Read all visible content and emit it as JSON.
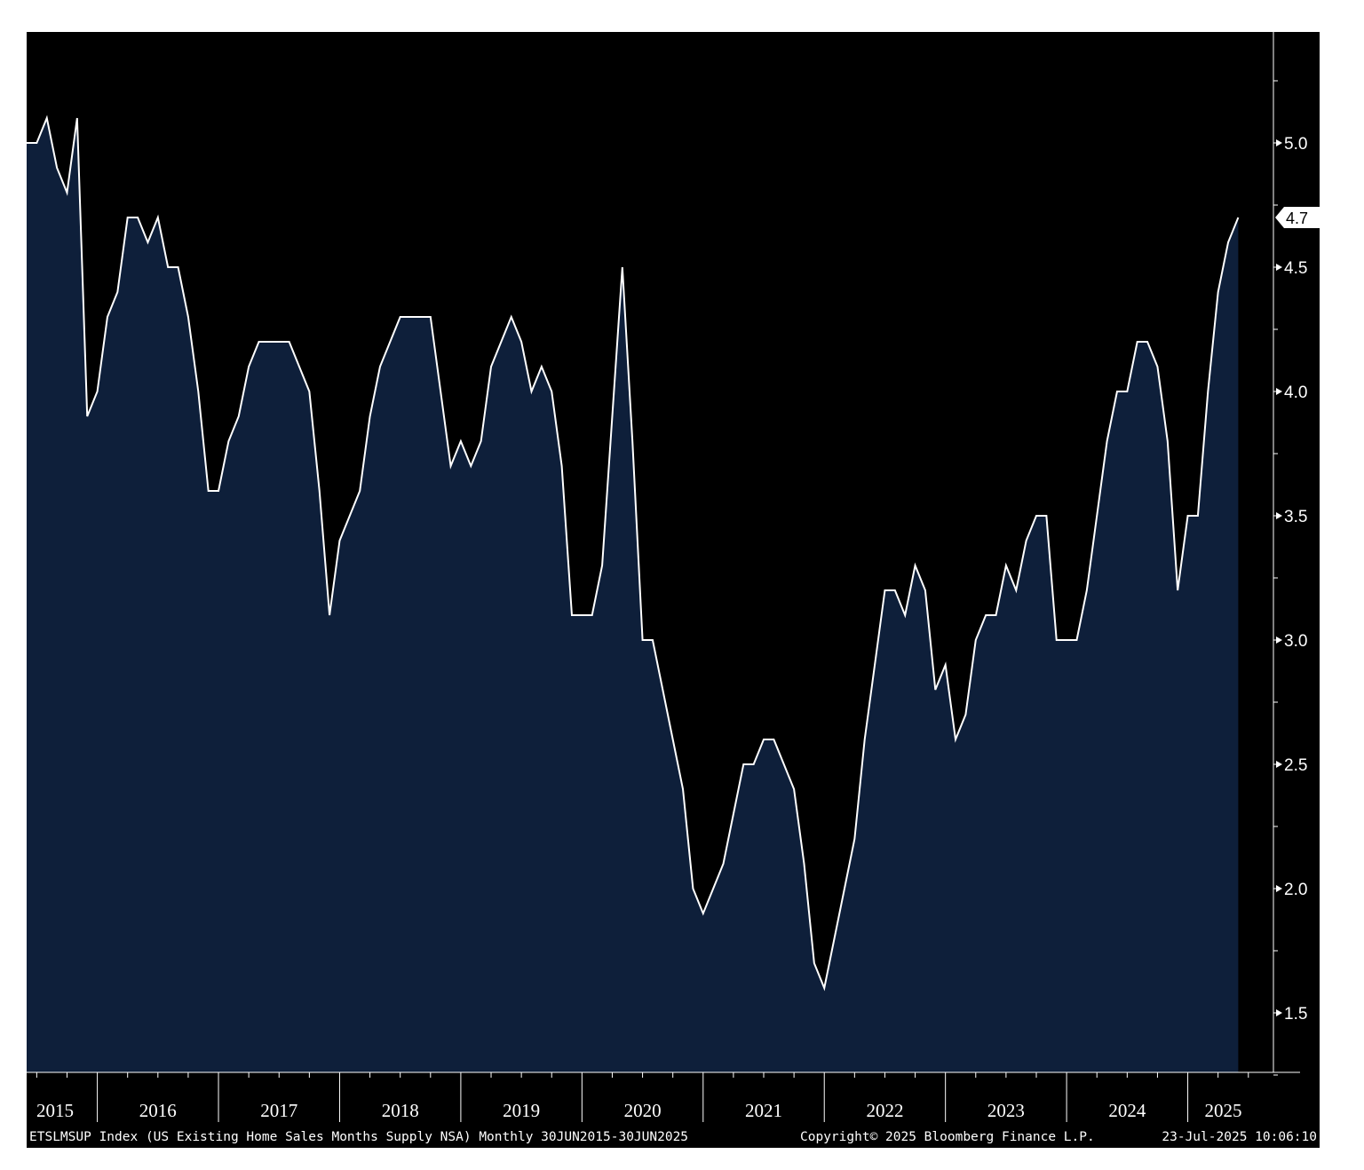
{
  "chart_data": {
    "type": "area",
    "title": "",
    "xlabel": "",
    "ylabel": "",
    "x_start": "2015-06",
    "x_end": "2025-06",
    "frequency": "monthly",
    "ylim": [
      1.25,
      5.5
    ],
    "yticks": [
      "1.5",
      "2.0",
      "2.5",
      "3.0",
      "3.5",
      "4.0",
      "4.5",
      "5.0"
    ],
    "xtick_labels": [
      "2015",
      "2016",
      "2017",
      "2018",
      "2019",
      "2020",
      "2021",
      "2022",
      "2023",
      "2024",
      "2025"
    ],
    "series": [
      {
        "values": [
          5.0,
          5.0,
          5.1,
          4.9,
          4.8,
          5.1,
          3.9,
          4.0,
          4.3,
          4.4,
          4.7,
          4.7,
          4.6,
          4.7,
          4.5,
          4.5,
          4.3,
          4.0,
          3.6,
          3.6,
          3.8,
          3.9,
          4.1,
          4.2,
          4.2,
          4.2,
          4.2,
          4.1,
          4.0,
          3.6,
          3.1,
          3.4,
          3.5,
          3.6,
          3.9,
          4.1,
          4.2,
          4.3,
          4.3,
          4.3,
          4.3,
          4.0,
          3.7,
          3.8,
          3.7,
          3.8,
          4.1,
          4.2,
          4.3,
          4.2,
          4.0,
          4.1,
          4.0,
          3.7,
          3.1,
          3.1,
          3.1,
          3.3,
          3.9,
          4.5,
          3.8,
          3.0,
          3.0,
          2.8,
          2.6,
          2.4,
          2.0,
          1.9,
          2.0,
          2.1,
          2.3,
          2.5,
          2.5,
          2.6,
          2.6,
          2.5,
          2.4,
          2.1,
          1.7,
          1.6,
          1.8,
          2.0,
          2.2,
          2.6,
          2.9,
          3.2,
          3.2,
          3.1,
          3.3,
          3.2,
          2.8,
          2.9,
          2.6,
          2.7,
          3.0,
          3.1,
          3.1,
          3.3,
          3.2,
          3.4,
          3.5,
          3.5,
          3.0,
          3.0,
          3.0,
          3.2,
          3.5,
          3.8,
          4.0,
          4.0,
          4.2,
          4.2,
          4.1,
          3.8,
          3.2,
          3.5,
          3.5,
          4.0,
          4.4,
          4.6,
          4.7
        ]
      }
    ],
    "last_value_label": "4.7",
    "grid": false,
    "legend": "none"
  },
  "footer": {
    "description": "ETSLMSUP Index (US Existing Home Sales Months Supply NSA)  Monthly 30JUN2015-30JUN2025",
    "copyright": "Copyright© 2025 Bloomberg Finance L.P.",
    "timestamp": "23-Jul-2025 10:06:10"
  },
  "colors": {
    "background": "#000000",
    "area_fill": "#0e1f3a",
    "line": "#ffffff",
    "text": "#ffffff"
  }
}
